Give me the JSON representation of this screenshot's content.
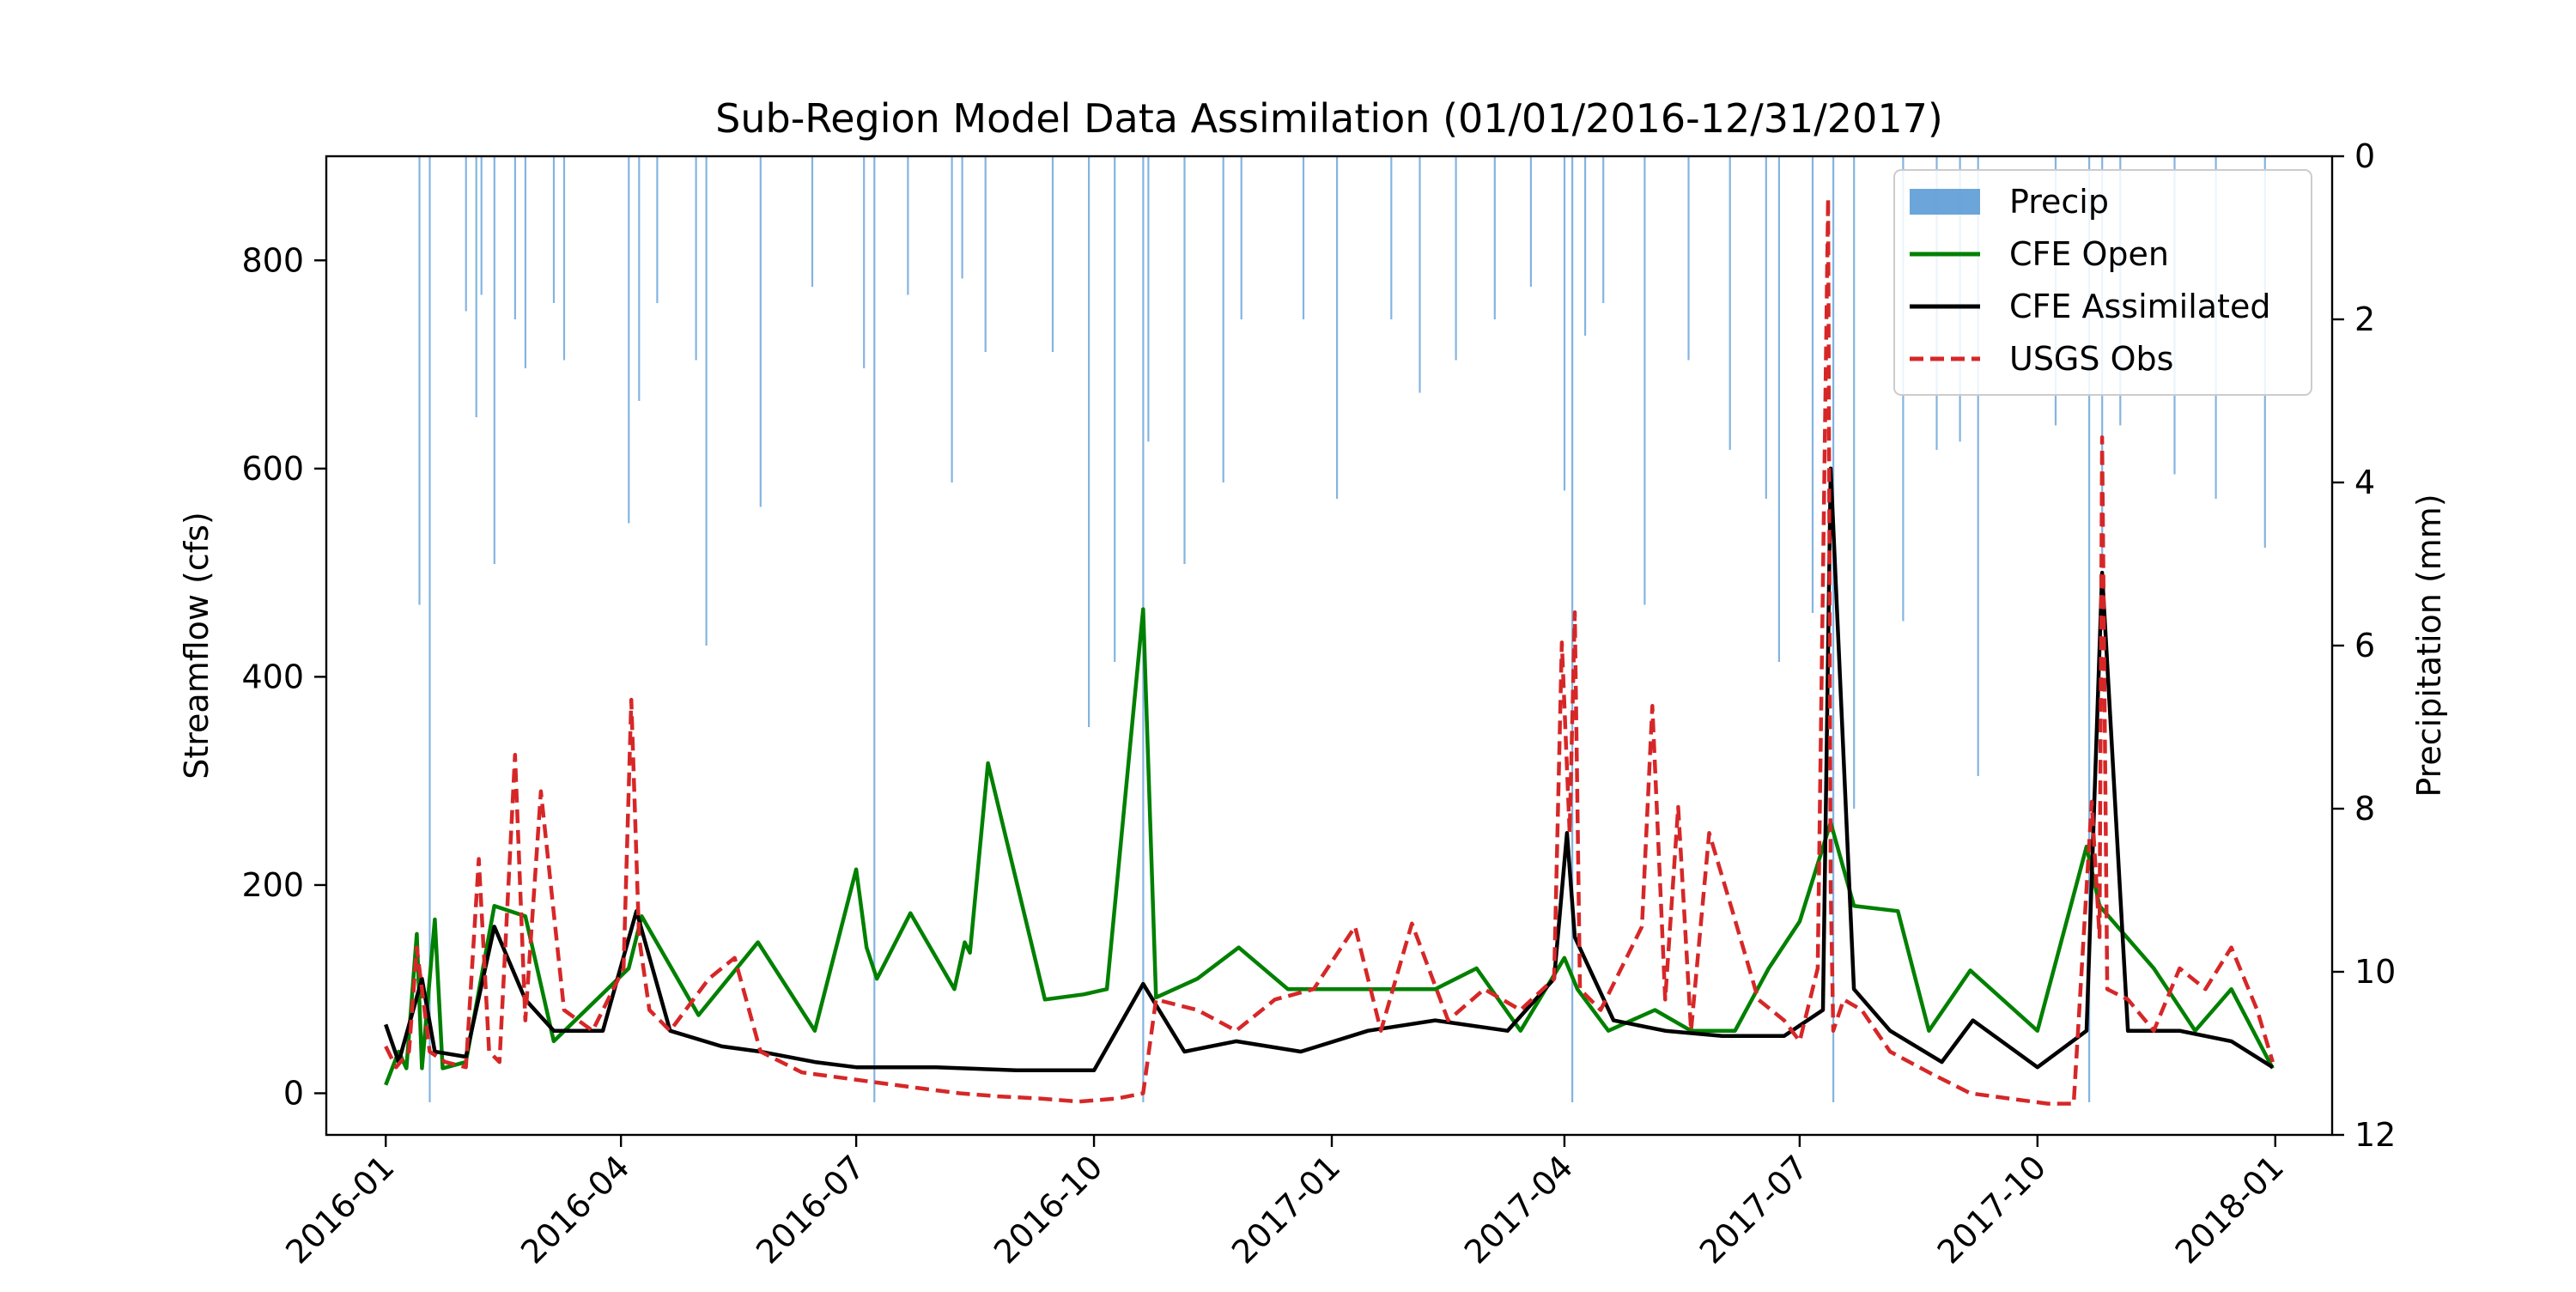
{
  "chart_data": {
    "type": "line",
    "title": "Sub-Region Model Data Assimilation (01/01/2016-12/31/2017)",
    "ylabel": "Streamflow (cfs)",
    "y2label": "Precipitation (mm)",
    "xlim": [
      "2015-12-09",
      "2018-01-23"
    ],
    "ylim": [
      -40,
      900
    ],
    "y2lim": [
      12,
      0
    ],
    "y2_inverted": true,
    "grid": false,
    "legend_position": "top-right",
    "x_ticks": [
      "2016-01",
      "2016-04",
      "2016-07",
      "2016-10",
      "2017-01",
      "2017-04",
      "2017-07",
      "2017-10",
      "2018-01"
    ],
    "y_ticks": [
      0,
      200,
      400,
      600,
      800
    ],
    "y2_ticks": [
      0,
      2,
      4,
      6,
      8,
      10,
      12
    ],
    "series": [
      {
        "name": "Precip",
        "kind": "bar",
        "axis": "right",
        "color": "#5b9bd5",
        "x": [
          "2016-01-14",
          "2016-01-18",
          "2016-02-01",
          "2016-02-05",
          "2016-02-07",
          "2016-02-12",
          "2016-02-20",
          "2016-02-24",
          "2016-03-06",
          "2016-03-10",
          "2016-04-04",
          "2016-04-08",
          "2016-04-15",
          "2016-04-30",
          "2016-05-04",
          "2016-05-25",
          "2016-06-14",
          "2016-07-04",
          "2016-07-08",
          "2016-07-21",
          "2016-08-07",
          "2016-08-11",
          "2016-08-20",
          "2016-09-15",
          "2016-09-29",
          "2016-10-09",
          "2016-10-20",
          "2016-10-22",
          "2016-11-05",
          "2016-11-20",
          "2016-11-27",
          "2016-12-21",
          "2017-01-03",
          "2017-01-24",
          "2017-02-04",
          "2017-02-18",
          "2017-03-05",
          "2017-03-19",
          "2017-04-01",
          "2017-04-04",
          "2017-04-09",
          "2017-04-16",
          "2017-05-02",
          "2017-05-19",
          "2017-06-04",
          "2017-06-18",
          "2017-06-23",
          "2017-07-06",
          "2017-07-14",
          "2017-07-22",
          "2017-08-10",
          "2017-08-23",
          "2017-09-01",
          "2017-09-08",
          "2017-10-08",
          "2017-10-21",
          "2017-10-26",
          "2017-11-02",
          "2017-11-23",
          "2017-12-09",
          "2017-12-28"
        ],
        "values": [
          5.5,
          11.6,
          1.9,
          3.2,
          1.7,
          5.0,
          2.0,
          2.6,
          1.8,
          2.5,
          4.5,
          3.0,
          1.8,
          2.5,
          6.0,
          4.3,
          1.6,
          2.6,
          11.6,
          1.7,
          4.0,
          1.5,
          2.4,
          2.4,
          7.0,
          6.2,
          11.6,
          3.5,
          5.0,
          4.0,
          2.0,
          2.0,
          4.2,
          2.0,
          2.9,
          2.5,
          2.0,
          1.6,
          4.1,
          11.6,
          2.2,
          1.8,
          5.5,
          2.5,
          3.6,
          4.2,
          6.2,
          5.6,
          11.6,
          8.0,
          5.7,
          3.6,
          3.5,
          7.6,
          3.3,
          11.6,
          4.9,
          3.3,
          3.9,
          4.2,
          4.8
        ]
      },
      {
        "name": "CFE Open",
        "kind": "line",
        "axis": "left",
        "color": "#008000",
        "x": [
          "2016-01-01",
          "2016-01-06",
          "2016-01-09",
          "2016-01-13",
          "2016-01-15",
          "2016-01-20",
          "2016-01-23",
          "2016-02-01",
          "2016-02-12",
          "2016-02-24",
          "2016-03-06",
          "2016-04-04",
          "2016-04-09",
          "2016-05-01",
          "2016-05-24",
          "2016-06-15",
          "2016-07-01",
          "2016-07-05",
          "2016-07-09",
          "2016-07-22",
          "2016-08-08",
          "2016-08-12",
          "2016-08-14",
          "2016-08-21",
          "2016-09-12",
          "2016-09-27",
          "2016-10-06",
          "2016-10-20",
          "2016-10-25",
          "2016-11-10",
          "2016-11-26",
          "2016-12-15",
          "2016-12-26",
          "2017-01-20",
          "2017-02-10",
          "2017-02-26",
          "2017-03-15",
          "2017-04-01",
          "2017-04-06",
          "2017-04-18",
          "2017-05-06",
          "2017-05-20",
          "2017-06-06",
          "2017-06-19",
          "2017-07-01",
          "2017-07-13",
          "2017-07-22",
          "2017-08-08",
          "2017-08-20",
          "2017-09-05",
          "2017-10-01",
          "2017-10-20",
          "2017-10-25",
          "2017-11-15",
          "2017-12-01",
          "2017-12-15",
          "2017-12-31"
        ],
        "values": [
          8,
          40,
          24,
          153,
          24,
          167,
          24,
          30,
          180,
          170,
          50,
          120,
          170,
          75,
          145,
          60,
          215,
          140,
          110,
          173,
          100,
          145,
          135,
          317,
          90,
          95,
          100,
          465,
          92,
          110,
          140,
          100,
          100,
          100,
          100,
          120,
          60,
          130,
          100,
          60,
          80,
          60,
          60,
          120,
          165,
          260,
          180,
          175,
          60,
          118,
          60,
          237,
          180,
          120,
          60,
          100,
          24
        ]
      },
      {
        "name": "CFE Assimilated",
        "kind": "line",
        "axis": "left",
        "color": "#000000",
        "x": [
          "2016-01-01",
          "2016-01-06",
          "2016-01-15",
          "2016-01-20",
          "2016-02-01",
          "2016-02-12",
          "2016-02-24",
          "2016-03-06",
          "2016-03-25",
          "2016-04-07",
          "2016-04-20",
          "2016-05-10",
          "2016-05-25",
          "2016-06-15",
          "2016-07-01",
          "2016-08-01",
          "2016-09-01",
          "2016-10-01",
          "2016-10-20",
          "2016-11-05",
          "2016-11-25",
          "2016-12-20",
          "2017-01-15",
          "2017-02-10",
          "2017-03-10",
          "2017-03-28",
          "2017-04-02",
          "2017-04-05",
          "2017-04-20",
          "2017-05-10",
          "2017-06-01",
          "2017-06-25",
          "2017-07-10",
          "2017-07-13",
          "2017-07-22",
          "2017-08-05",
          "2017-08-25",
          "2017-09-06",
          "2017-10-01",
          "2017-10-20",
          "2017-10-26",
          "2017-11-05",
          "2017-11-25",
          "2017-12-15",
          "2017-12-31"
        ],
        "values": [
          66,
          30,
          110,
          40,
          35,
          160,
          90,
          60,
          60,
          175,
          60,
          45,
          40,
          30,
          25,
          25,
          22,
          22,
          105,
          40,
          50,
          40,
          60,
          70,
          60,
          110,
          250,
          150,
          70,
          60,
          55,
          55,
          80,
          600,
          100,
          60,
          30,
          70,
          25,
          60,
          500,
          60,
          60,
          50,
          25
        ]
      },
      {
        "name": "USGS Obs",
        "kind": "line",
        "axis": "left",
        "dash": "dashed",
        "color": "#d62728",
        "x": [
          "2016-01-01",
          "2016-01-05",
          "2016-01-10",
          "2016-01-13",
          "2016-01-18",
          "2016-01-24",
          "2016-02-01",
          "2016-02-06",
          "2016-02-10",
          "2016-02-14",
          "2016-02-20",
          "2016-02-24",
          "2016-03-01",
          "2016-03-10",
          "2016-03-21",
          "2016-04-02",
          "2016-04-05",
          "2016-04-08",
          "2016-04-12",
          "2016-04-20",
          "2016-05-05",
          "2016-05-15",
          "2016-05-25",
          "2016-06-10",
          "2016-06-25",
          "2016-07-10",
          "2016-07-25",
          "2016-08-10",
          "2016-08-25",
          "2016-09-10",
          "2016-09-25",
          "2016-10-10",
          "2016-10-20",
          "2016-10-25",
          "2016-11-10",
          "2016-11-25",
          "2016-12-10",
          "2016-12-25",
          "2017-01-10",
          "2017-01-20",
          "2017-02-01",
          "2017-02-15",
          "2017-03-01",
          "2017-03-15",
          "2017-03-28",
          "2017-03-31",
          "2017-04-03",
          "2017-04-05",
          "2017-04-07",
          "2017-04-15",
          "2017-05-01",
          "2017-05-05",
          "2017-05-10",
          "2017-05-15",
          "2017-05-20",
          "2017-05-27",
          "2017-06-05",
          "2017-06-15",
          "2017-06-25",
          "2017-07-01",
          "2017-07-08",
          "2017-07-12",
          "2017-07-13",
          "2017-07-14",
          "2017-07-18",
          "2017-07-25",
          "2017-08-05",
          "2017-08-20",
          "2017-09-05",
          "2017-09-20",
          "2017-10-05",
          "2017-10-15",
          "2017-10-22",
          "2017-10-25",
          "2017-10-26",
          "2017-10-28",
          "2017-11-05",
          "2017-11-15",
          "2017-11-25",
          "2017-12-05",
          "2017-12-15",
          "2017-12-25",
          "2017-12-31"
        ],
        "values": [
          45,
          25,
          40,
          140,
          40,
          30,
          25,
          225,
          40,
          30,
          325,
          70,
          290,
          80,
          60,
          120,
          378,
          150,
          80,
          60,
          110,
          130,
          40,
          20,
          15,
          10,
          5,
          0,
          -3,
          -5,
          -8,
          -5,
          0,
          90,
          80,
          60,
          90,
          100,
          160,
          60,
          163,
          70,
          100,
          80,
          110,
          433,
          250,
          462,
          100,
          80,
          160,
          372,
          90,
          275,
          60,
          250,
          175,
          90,
          70,
          50,
          120,
          860,
          200,
          60,
          90,
          80,
          40,
          20,
          0,
          -5,
          -10,
          -10,
          280,
          150,
          630,
          100,
          90,
          60,
          120,
          100,
          140,
          80,
          30
        ]
      }
    ]
  }
}
